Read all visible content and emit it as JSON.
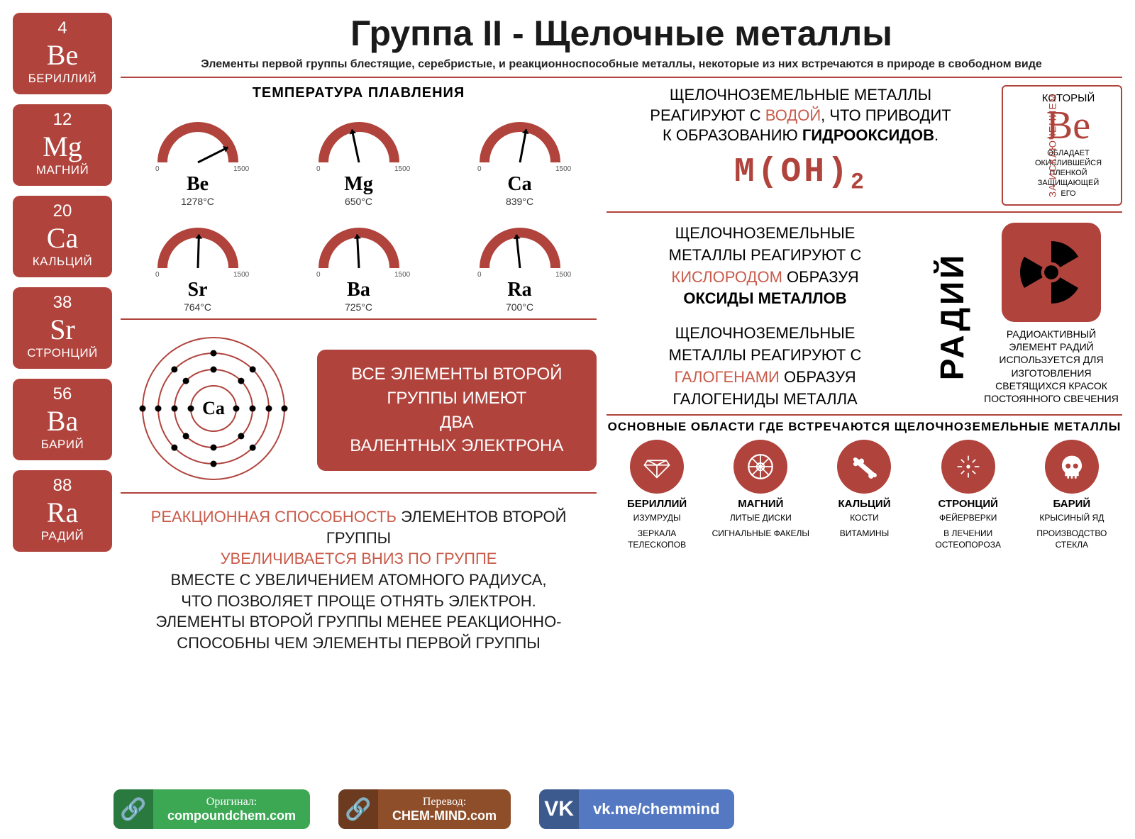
{
  "colors": {
    "accent": "#b0433c",
    "accent_light": "#c95b4a",
    "text": "#1a1a1a",
    "bg": "#ffffff",
    "green_dark": "#2a7a3f",
    "green_light": "#3ca854",
    "brown_dark": "#6b3a1f",
    "brown_light": "#8e4e2a",
    "blue_dark": "#3d5a8f",
    "blue_light": "#5478c1"
  },
  "sidebar": [
    {
      "num": "4",
      "sym": "Be",
      "name": "БЕРИЛЛИЙ"
    },
    {
      "num": "12",
      "sym": "Mg",
      "name": "МАГНИЙ"
    },
    {
      "num": "20",
      "sym": "Ca",
      "name": "КАЛЬЦИЙ"
    },
    {
      "num": "38",
      "sym": "Sr",
      "name": "СТРОНЦИЙ"
    },
    {
      "num": "56",
      "sym": "Ba",
      "name": "БАРИЙ"
    },
    {
      "num": "88",
      "sym": "Ra",
      "name": "РАДИЙ"
    }
  ],
  "title": "Группа II - Щелочные металлы",
  "subtitle": "Элементы первой группы блестящие, серебристые, и реакционноспособные металлы, некоторые из них встречаются в природе в свободном виде",
  "melting": {
    "title": "ТЕМПЕРАТУРА ПЛАВЛЕНИЯ",
    "min": 0,
    "max": 1500,
    "min_label": "0",
    "max_label": "1500",
    "items": [
      {
        "sym": "Be",
        "temp": 1278,
        "label": "1278°C"
      },
      {
        "sym": "Mg",
        "temp": 650,
        "label": "650°C"
      },
      {
        "sym": "Ca",
        "temp": 839,
        "label": "839°C"
      },
      {
        "sym": "Sr",
        "temp": 764,
        "label": "764°C"
      },
      {
        "sym": "Ba",
        "temp": 725,
        "label": "725°C"
      },
      {
        "sym": "Ra",
        "temp": 700,
        "label": "700°C"
      }
    ]
  },
  "atom": {
    "sym": "Ca",
    "shells": [
      2,
      8,
      8,
      2
    ]
  },
  "valence": {
    "l1": "ВСЕ ЭЛЕМЕНТЫ ВТОРОЙ",
    "l2": "ГРУППЫ ИМЕЮТ",
    "l3": "ДВА",
    "l4": "ВАЛЕНТНЫХ ЭЛЕКТРОНА"
  },
  "reactivity": {
    "l1a": "РЕАКЦИОННАЯ СПОСОБНОСТЬ",
    "l1b": " ЭЛЕМЕНТОВ ВТОРОЙ ГРУППЫ",
    "l2": "УВЕЛИЧИВАЕТСЯ ВНИЗ ПО ГРУППЕ",
    "l3": "ВМЕСТЕ С УВЕЛИЧЕНИЕМ АТОМНОГО РАДИУСА,",
    "l4": "ЧТО ПОЗВОЛЯЕТ ПРОЩЕ ОТНЯТЬ ЭЛЕКТРОН.",
    "l5": "ЭЛЕМЕНТЫ ВТОРОЙ ГРУППЫ МЕНЕЕ РЕАКЦИОННО-",
    "l6": "СПОСОБНЫ ЧЕМ ЭЛЕМЕНТЫ ПЕРВОЙ ГРУППЫ"
  },
  "water": {
    "l1": "ЩЕЛОЧНОЗЕМЕЛЬНЫЕ МЕТАЛЛЫ",
    "l2a": "РЕАГИРУЮТ С ",
    "l2b": "ВОДОЙ",
    "l2c": ", ЧТО ПРИВОДИТ",
    "l3a": "К ОБРАЗОВАНИЮ ",
    "l3b": "ГИДРООКСИДОВ",
    "l3c": ".",
    "formula": "M(OH)",
    "sub": "2"
  },
  "except": {
    "vlabel": "ЗА ИСКЛЮЧЕНИЕМ",
    "which": "КОТОРЫЙ",
    "sym": "Be",
    "l1": "ОБЛАДАЕТ",
    "l2": "ОКИСЛИВШЕЙСЯ",
    "l3": "ПЛЕНКОЙ",
    "l4": "ЗАЩИЩАЮЩЕЙ",
    "l5": "ЕГО"
  },
  "oxygen": {
    "l1": "ЩЕЛОЧНОЗЕМЕЛЬНЫЕ",
    "l2": "МЕТАЛЛЫ  РЕАГИРУЮТ С",
    "l3": "КИСЛОРОДОМ",
    "l3b": " ОБРАЗУЯ",
    "l4": "ОКСИДЫ МЕТАЛЛОВ"
  },
  "halogen": {
    "l1": "ЩЕЛОЧНОЗЕМЕЛЬНЫЕ",
    "l2": "МЕТАЛЛЫ  РЕАГИРУЮТ С",
    "l3": "ГАЛОГЕНАМИ",
    "l3b": " ОБРАЗУЯ",
    "l4": "ГАЛОГЕНИДЫ МЕТАЛЛА"
  },
  "radium": {
    "vlabel": "РАДИЙ",
    "l1": "РАДИОАКТИВНЫЙ",
    "l2": "ЭЛЕМЕНТ РАДИЙ",
    "l3": "ИСПОЛЬЗУЕТСЯ ДЛЯ",
    "l4": "ИЗГОТОВЛЕНИЯ",
    "l5": "СВЕТЯЩИХСЯ КРАСОК",
    "l6": "ПОСТОЯННОГО СВЕЧЕНИЯ"
  },
  "uses": {
    "title": "ОСНОВНЫЕ ОБЛАСТИ ГДЕ ВСТРЕЧАЮТСЯ ЩЕЛОЧНОЗЕМЕЛЬНЫЕ МЕТАЛЛЫ",
    "items": [
      {
        "name": "БЕРИЛЛИЙ",
        "l1": "ИЗУМРУДЫ",
        "l2": "ЗЕРКАЛА ТЕЛЕСКОПОВ",
        "icon": "diamond"
      },
      {
        "name": "МАГНИЙ",
        "l1": "ЛИТЫЕ ДИСКИ",
        "l2": "СИГНАЛЬНЫЕ ФАКЕЛЫ",
        "icon": "wheel"
      },
      {
        "name": "КАЛЬЦИЙ",
        "l1": "КОСТИ",
        "l2": "ВИТАМИНЫ",
        "icon": "bone"
      },
      {
        "name": "СТРОНЦИЙ",
        "l1": "ФЕЙЕРВЕРКИ",
        "l2": "В ЛЕЧЕНИИ ОСТЕОПОРОЗА",
        "icon": "spark"
      },
      {
        "name": "БАРИЙ",
        "l1": "КРЫСИНЫЙ ЯД",
        "l2": "ПРОИЗВОДСТВО СТЕКЛА",
        "icon": "skull"
      }
    ]
  },
  "footer": {
    "orig_lbl": "Оригинал:",
    "orig_url": "compoundchem.com",
    "trans_lbl": "Перевод:",
    "trans_url": "CHEM-MIND.com",
    "vk_lbl": "vk.me/chemmind"
  }
}
